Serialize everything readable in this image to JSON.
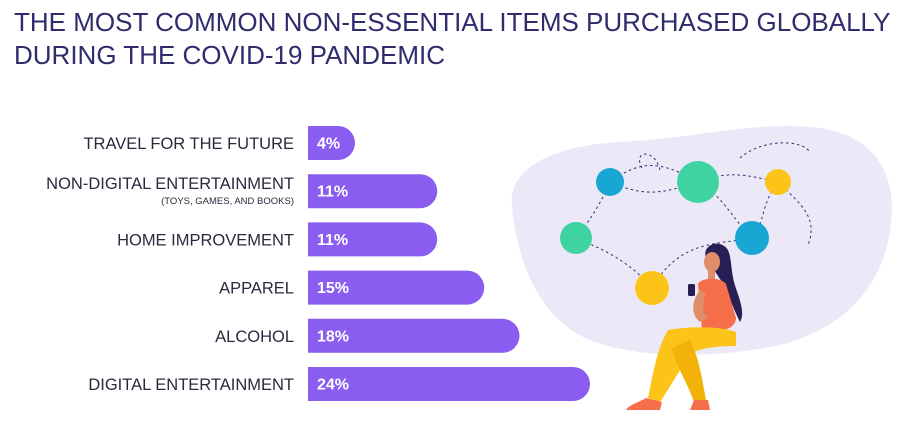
{
  "title": "THE MOST COMMON NON-ESSENTIAL ITEMS PURCHASED GLOBALLY DURING THE COVID-19 PANDEMIC",
  "colors": {
    "bar": "#8b5cf0",
    "title": "#2f2c6e",
    "blob": "#ebe8f7",
    "circle_blue": "#1aa6d3",
    "circle_green": "#3fd3a2",
    "circle_yellow": "#fcc419"
  },
  "chart_data": {
    "type": "bar",
    "orientation": "horizontal",
    "categories": [
      "TRAVEL FOR THE FUTURE",
      "NON-DIGITAL ENTERTAINMENT",
      "HOME IMPROVEMENT",
      "APPAREL",
      "ALCOHOL",
      "DIGITAL ENTERTAINMENT"
    ],
    "category_sublabels": [
      "",
      "(TOYS, GAMES, AND BOOKS)",
      "",
      "",
      "",
      ""
    ],
    "values": [
      4,
      11,
      11,
      15,
      18,
      24
    ],
    "value_labels": [
      "4%",
      "11%",
      "11%",
      "15%",
      "18%",
      "24%"
    ],
    "xlim": [
      0,
      24
    ],
    "grid": false,
    "legend": "none"
  }
}
